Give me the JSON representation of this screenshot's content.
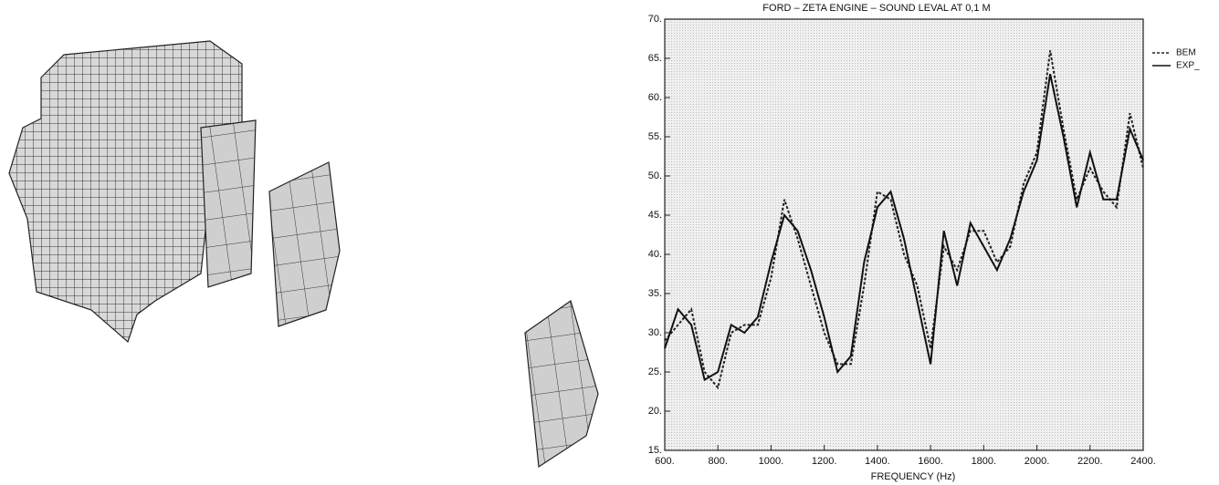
{
  "chart_data": {
    "type": "line",
    "title": "FORD – ZETA ENGINE – SOUND LEVAL AT 0,1 M",
    "x_label": "FREQUENCY (Hz)",
    "x": [
      600,
      650,
      700,
      750,
      800,
      850,
      900,
      950,
      1000,
      1050,
      1100,
      1150,
      1200,
      1250,
      1300,
      1350,
      1400,
      1450,
      1500,
      1550,
      1600,
      1650,
      1700,
      1750,
      1800,
      1850,
      1900,
      1950,
      2000,
      2050,
      2100,
      2150,
      2200,
      2250,
      2300,
      2350,
      2400
    ],
    "series": [
      {
        "name": "BEM",
        "color": "#222222",
        "style": "dashed",
        "values": [
          29,
          31,
          33,
          25,
          23,
          30,
          31,
          31,
          37,
          47,
          42,
          36,
          30,
          26,
          26,
          36,
          48,
          47,
          40,
          36,
          28,
          41,
          38,
          43,
          43,
          39,
          41,
          49,
          53,
          66,
          56,
          47,
          51,
          48,
          46,
          58,
          51
        ]
      },
      {
        "name": "EXP_",
        "color": "#111111",
        "style": "solid",
        "values": [
          28,
          33,
          31,
          24,
          25,
          31,
          30,
          32,
          39,
          45,
          43,
          38,
          32,
          25,
          27,
          39,
          46,
          48,
          42,
          34,
          26,
          43,
          36,
          44,
          41,
          38,
          42,
          48,
          52,
          63,
          55,
          46,
          53,
          47,
          47,
          56,
          52
        ]
      }
    ],
    "xlim": [
      600,
      2400
    ],
    "xticks": [
      {
        "value": 600,
        "label": "600."
      },
      {
        "value": 800,
        "label": "800."
      },
      {
        "value": 1000,
        "label": "1000."
      },
      {
        "value": 1200,
        "label": "1200."
      },
      {
        "value": 1400,
        "label": "1400."
      },
      {
        "value": 1600,
        "label": "1600."
      },
      {
        "value": 1800,
        "label": "1800."
      },
      {
        "value": 2000,
        "label": "2000."
      },
      {
        "value": 2200,
        "label": "2200."
      },
      {
        "value": 2400,
        "label": "2400."
      }
    ],
    "ylim": [
      15,
      70
    ],
    "yticks": [
      {
        "value": 15,
        "label": "15."
      },
      {
        "value": 20,
        "label": "20."
      },
      {
        "value": 25,
        "label": "25."
      },
      {
        "value": 30,
        "label": "30."
      },
      {
        "value": 35,
        "label": "35."
      },
      {
        "value": 40,
        "label": "40."
      },
      {
        "value": 45,
        "label": "45."
      },
      {
        "value": 50,
        "label": "50."
      },
      {
        "value": 55,
        "label": "55."
      },
      {
        "value": 60,
        "label": "60."
      },
      {
        "value": 65,
        "label": "65."
      },
      {
        "value": 70,
        "label": "70."
      }
    ],
    "legend": "right"
  }
}
